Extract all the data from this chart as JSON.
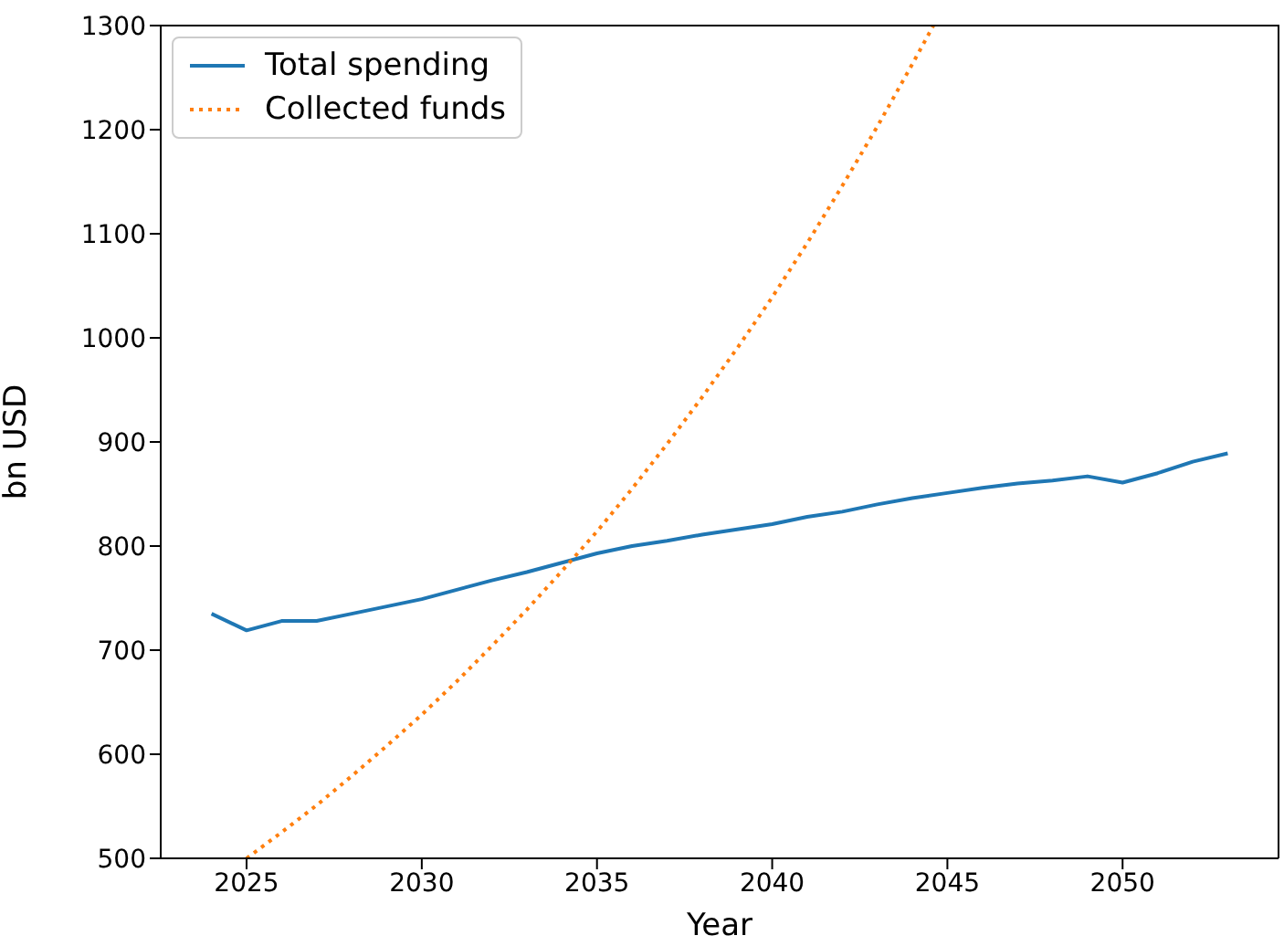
{
  "chart_data": {
    "type": "line",
    "xlabel": "Year",
    "ylabel": "bn USD",
    "xlim": [
      2022.55,
      2054.45
    ],
    "xticks": [
      2025,
      2030,
      2035,
      2040,
      2045,
      2050
    ],
    "ylim": [
      500,
      1300
    ],
    "yticks": [
      500,
      600,
      700,
      800,
      900,
      1000,
      1100,
      1200,
      1300
    ],
    "grid": false,
    "legend": "top left",
    "marker": "none",
    "x": [
      2024,
      2025,
      2026,
      2027,
      2028,
      2029,
      2030,
      2031,
      2032,
      2033,
      2034,
      2035,
      2036,
      2037,
      2038,
      2039,
      2040,
      2041,
      2042,
      2043,
      2044,
      2045,
      2046,
      2047,
      2048,
      2049,
      2050,
      2051,
      2052,
      2053
    ],
    "series": [
      {
        "name": "Total spending",
        "color": "#1f77b4",
        "line_style": "solid",
        "values": [
          735,
          719,
          728,
          728,
          735,
          742,
          749,
          758,
          767,
          775,
          784,
          793,
          800,
          805,
          811,
          816,
          821,
          828,
          833,
          840,
          846,
          851,
          856,
          860,
          863,
          867,
          861,
          870,
          881,
          889
        ]
      },
      {
        "name": "Collected funds",
        "color": "#ff7f0e",
        "line_style": "dotted",
        "x": [
          2025,
          2026,
          2027,
          2028,
          2029,
          2030,
          2031,
          2032,
          2033,
          2034,
          2035,
          2036,
          2037,
          2038,
          2039,
          2040,
          2041,
          2042,
          2043,
          2044,
          2044.6
        ],
        "values": [
          500,
          525,
          551,
          579,
          608,
          638,
          670,
          704,
          739,
          776,
          814,
          855,
          898,
          943,
          990,
          1039,
          1091,
          1146,
          1203,
          1263,
          1300
        ]
      }
    ]
  }
}
